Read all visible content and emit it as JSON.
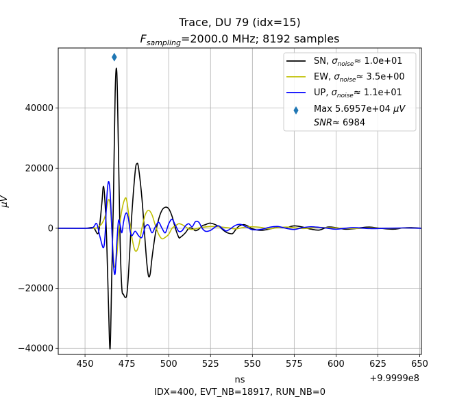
{
  "chart_data": {
    "type": "line",
    "title_line1": "Trace, DU 79 (idx=15)",
    "title_line2_prefix": "F",
    "title_line2_sub": "sampling",
    "title_line2_suffix": "=2000.0 MHz; 8192 samples",
    "xlabel": "ns",
    "ylabel": "μV",
    "x_offset_label": "+9.9999e8",
    "footer": "IDX=400, EVT_NB=18917, RUN_NB=0",
    "xlim": [
      434,
      651
    ],
    "ylim": [
      -42000,
      60000
    ],
    "xticks": [
      450,
      475,
      500,
      525,
      550,
      575,
      600,
      625,
      650
    ],
    "yticks": [
      -40000,
      -20000,
      0,
      20000,
      40000
    ],
    "ytick_labels": [
      "−40000",
      "−20000",
      "0",
      "20000",
      "40000"
    ],
    "grid": true,
    "legend_position": "top-right",
    "series": [
      {
        "name": "SN",
        "sigma_label": "≈ 1.0e+01",
        "color": "#000000",
        "x": [
          434,
          450,
          455,
          458,
          460,
          461,
          462,
          463,
          464,
          465,
          466,
          467,
          468,
          469,
          470,
          471,
          472,
          473,
          474,
          475,
          476,
          477,
          478,
          480,
          481,
          482,
          484,
          486,
          487,
          488,
          489,
          490,
          492,
          494,
          496,
          498,
          500,
          502,
          504,
          506,
          507,
          510,
          512,
          514,
          516,
          518,
          520,
          522,
          525,
          530,
          533,
          535,
          538,
          540,
          542,
          545,
          548,
          550,
          555,
          560,
          565,
          570,
          575,
          580,
          585,
          590,
          595,
          600,
          605,
          610,
          615,
          620,
          625,
          630,
          635,
          640,
          645,
          651
        ],
        "y": [
          0,
          0,
          200,
          -1500,
          8000,
          14000,
          8000,
          -5000,
          -25000,
          -40000,
          -15000,
          10000,
          45000,
          52000,
          25000,
          -5000,
          -20000,
          -22000,
          -23000,
          -22000,
          -15000,
          -5000,
          5000,
          19000,
          21500,
          20000,
          10000,
          -5000,
          -12000,
          -16000,
          -15000,
          -10000,
          -2000,
          3000,
          6000,
          7000,
          6500,
          4000,
          0,
          -3000,
          -3000,
          -1500,
          0,
          0,
          -800,
          -300,
          800,
          1200,
          1700,
          600,
          -800,
          -1500,
          -1800,
          -500,
          700,
          1200,
          500,
          -200,
          -700,
          -300,
          300,
          200,
          800,
          400,
          -300,
          -600,
          400,
          200,
          -300,
          -200,
          200,
          400,
          100,
          -200,
          -300,
          100,
          200,
          0
        ]
      },
      {
        "name": "EW",
        "sigma_label": "≈ 3.5e+00",
        "color": "#bfbf00",
        "x": [
          434,
          455,
          458,
          460,
          462,
          463,
          464,
          465,
          466,
          467,
          468,
          469,
          470,
          472,
          474,
          475,
          476,
          478,
          480,
          482,
          484,
          486,
          488,
          490,
          492,
          494,
          496,
          498,
          500,
          502,
          504,
          506,
          508,
          510,
          512,
          514,
          516,
          518,
          520,
          525,
          530,
          535,
          540,
          545,
          550,
          555,
          560,
          565,
          570,
          575,
          580,
          585,
          590,
          595,
          600,
          610,
          620,
          630,
          640,
          651
        ],
        "y": [
          0,
          0,
          500,
          1500,
          4000,
          7000,
          9500,
          8000,
          0,
          -10000,
          -13000,
          -9000,
          -2000,
          6000,
          10000,
          9000,
          5000,
          -3000,
          -7500,
          -6000,
          0,
          4500,
          6000,
          4500,
          1000,
          -2000,
          -3500,
          -3000,
          -2000,
          0,
          800,
          1500,
          1200,
          500,
          -200,
          -400,
          -200,
          100,
          300,
          600,
          500,
          200,
          -200,
          300,
          500,
          300,
          -200,
          200,
          400,
          200,
          -100,
          100,
          300,
          200,
          100,
          -100,
          100,
          0,
          50,
          0
        ]
      },
      {
        "name": "UP",
        "sigma_label": "≈ 1.1e+01",
        "color": "#0000ff",
        "x": [
          434,
          452,
          455,
          457,
          459,
          461,
          462,
          463,
          464,
          465,
          466,
          467,
          468,
          469,
          470,
          471,
          472,
          473,
          474,
          475,
          476,
          477,
          478,
          480,
          482,
          484,
          486,
          488,
          490,
          492,
          494,
          496,
          498,
          500,
          502,
          504,
          506,
          508,
          510,
          512,
          514,
          516,
          518,
          520,
          522,
          525,
          528,
          530,
          533,
          535,
          540,
          543,
          545,
          548,
          550,
          555,
          560,
          565,
          570,
          575,
          580,
          585,
          590,
          595,
          600,
          610,
          620,
          630,
          640,
          651
        ],
        "y": [
          0,
          0,
          400,
          1500,
          -3000,
          -6500,
          -2000,
          10000,
          15500,
          12000,
          0,
          -12000,
          -15000,
          -5000,
          2500,
          1000,
          -1500,
          2000,
          4500,
          5000,
          3000,
          -1000,
          -2500,
          -1000,
          -2500,
          -3000,
          500,
          1000,
          -1500,
          500,
          2000,
          0,
          -1500,
          1500,
          3000,
          1000,
          -1000,
          -800,
          800,
          1500,
          500,
          2200,
          2000,
          0,
          -1000,
          -700,
          500,
          800,
          -500,
          -800,
          1000,
          1300,
          800,
          0,
          -500,
          -400,
          300,
          600,
          0,
          -400,
          200,
          500,
          300,
          0,
          -300,
          200,
          -100,
          0,
          100,
          0
        ]
      }
    ],
    "marker": {
      "x": 467.5,
      "y": 56957,
      "color": "#1f77b4",
      "label_line1": "Max 5.6957e+04",
      "label_unit": "μV",
      "label_line2_prefix": "SNR",
      "label_line2_suffix": "≈ 6984"
    },
    "sigma_symbol": "σ",
    "sigma_subscript": "noise"
  }
}
